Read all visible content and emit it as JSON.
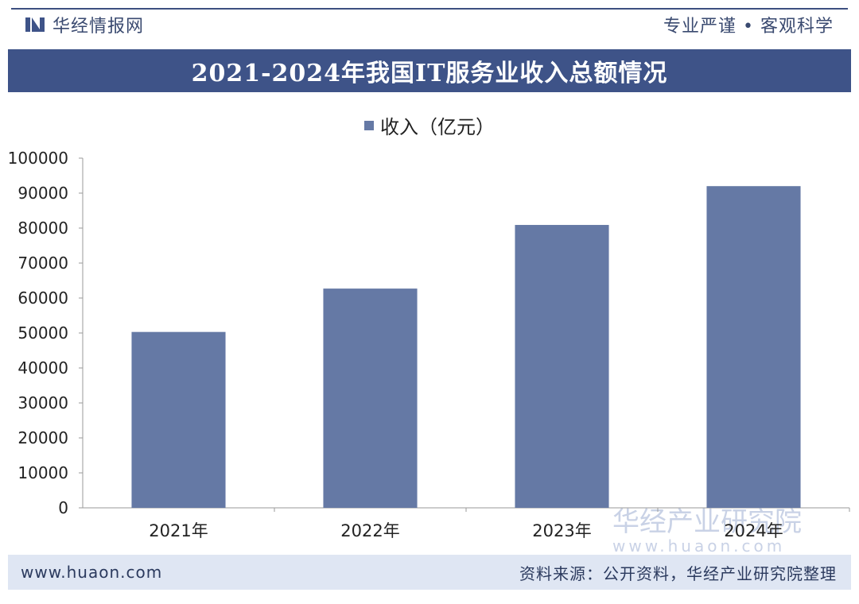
{
  "header": {
    "logo_text": "华经情报网",
    "slogan": "专业严谨 • 客观科学"
  },
  "title": "2021-2024年我国IT服务业收入总额情况",
  "footer": {
    "site": "www.huaon.com",
    "source": "资料来源：公开资料，华经产业研究院整理"
  },
  "watermark": {
    "name": "华经产业研究院",
    "url": "www.huaon.com"
  },
  "colors": {
    "bar": "#6579a5",
    "title_band": "#3e5388",
    "bottom_band": "#dfe6f3"
  },
  "chart_data": {
    "type": "bar",
    "categories": [
      "2021年",
      "2022年",
      "2023年",
      "2024年"
    ],
    "series": [
      {
        "name": "收入（亿元）",
        "values": [
          50300,
          62700,
          80900,
          92000
        ]
      }
    ],
    "ylim": [
      0,
      100000
    ],
    "yticks": [
      0,
      10000,
      20000,
      30000,
      40000,
      50000,
      60000,
      70000,
      80000,
      90000,
      100000
    ],
    "xlabel": "",
    "ylabel": "",
    "grid": false,
    "legend": "top-center"
  }
}
